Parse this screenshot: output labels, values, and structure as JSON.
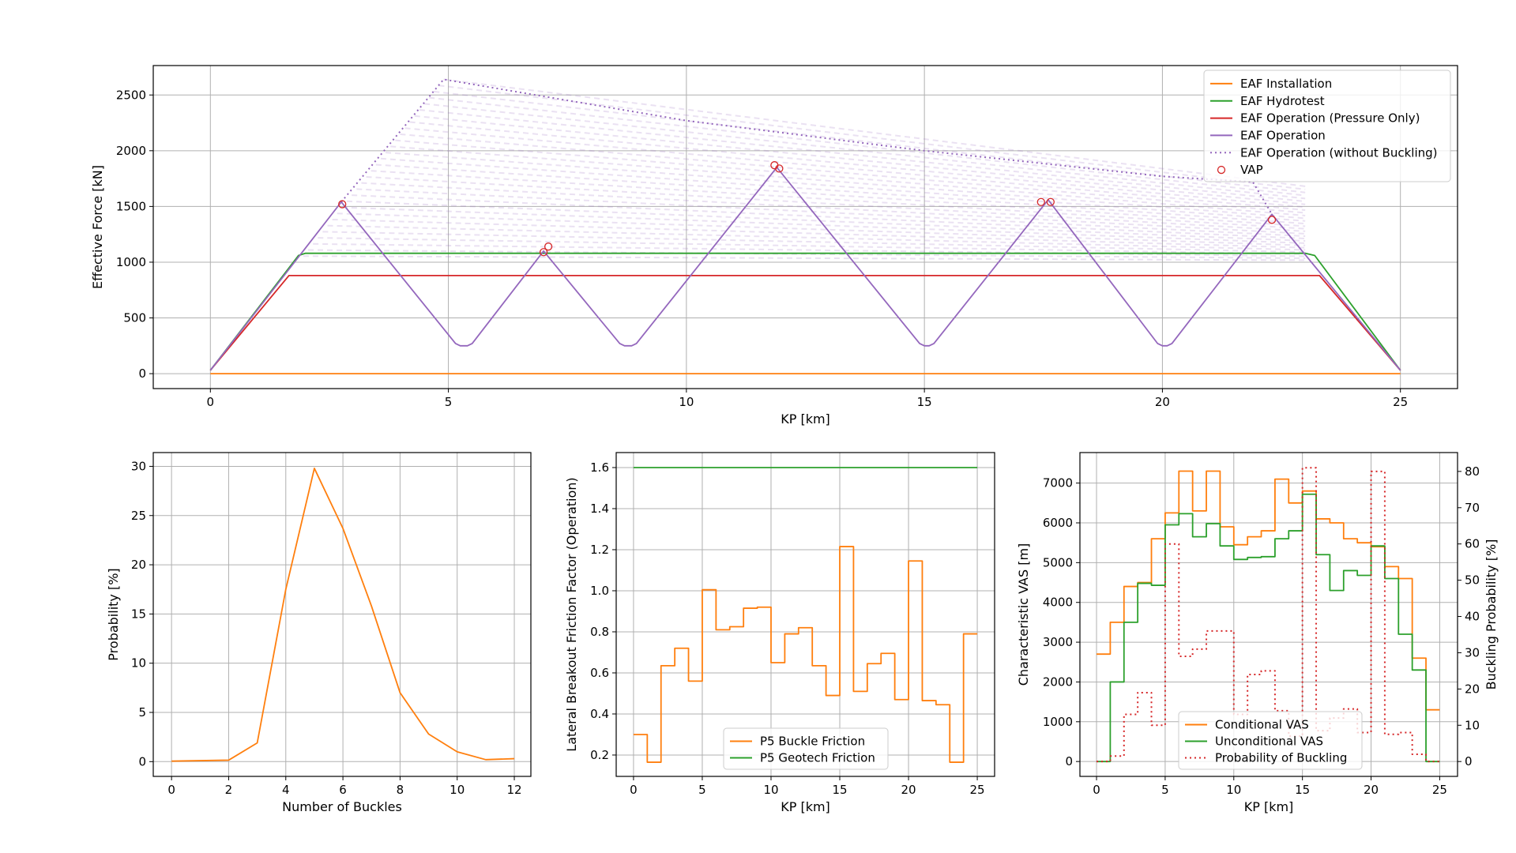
{
  "chart_data": [
    {
      "type": "line",
      "xlabel": "KP [km]",
      "ylabel": "Effective Force [kN]",
      "xlim": [
        -1.2,
        26.2
      ],
      "ylim": [
        -134,
        2764
      ],
      "xticks": [
        "0",
        "5",
        "10",
        "15",
        "20",
        "25"
      ],
      "yticks": [
        "0",
        "500",
        "1000",
        "1500",
        "2000",
        "2500"
      ],
      "grid": true,
      "legend_position": "top-right",
      "series": [
        {
          "name": "EAF Installation",
          "color": "#ff7f0e",
          "style": "solid",
          "points": [
            [
              0,
              0
            ],
            [
              25,
              0
            ]
          ]
        },
        {
          "name": "EAF Hydrotest",
          "color": "#2ca02c",
          "style": "solid",
          "points": [
            [
              0,
              30
            ],
            [
              1.85,
              1060
            ],
            [
              2.0,
              1080
            ],
            [
              23.0,
              1080
            ],
            [
              23.2,
              1060
            ],
            [
              25,
              30
            ]
          ]
        },
        {
          "name": "EAF Operation (Pressure Only)",
          "color": "#d62728",
          "style": "solid",
          "points": [
            [
              0,
              30
            ],
            [
              1.65,
              880
            ],
            [
              23.3,
              880
            ],
            [
              25,
              30
            ]
          ]
        },
        {
          "name": "EAF Operation",
          "color": "#9467bd",
          "style": "solid",
          "points": [
            [
              0,
              30
            ],
            [
              2.75,
              1540
            ],
            [
              5.15,
              270
            ],
            [
              5.25,
              250
            ],
            [
              5.4,
              250
            ],
            [
              5.5,
              270
            ],
            [
              7.0,
              1100
            ],
            [
              8.6,
              270
            ],
            [
              8.7,
              250
            ],
            [
              8.85,
              250
            ],
            [
              8.95,
              270
            ],
            [
              11.9,
              1850
            ],
            [
              14.9,
              270
            ],
            [
              15.0,
              250
            ],
            [
              15.1,
              250
            ],
            [
              15.2,
              270
            ],
            [
              17.6,
              1560
            ],
            [
              19.9,
              270
            ],
            [
              20.0,
              250
            ],
            [
              20.1,
              250
            ],
            [
              20.2,
              270
            ],
            [
              22.3,
              1430
            ],
            [
              25,
              30
            ]
          ]
        },
        {
          "name": "EAF Operation (without Buckling)",
          "color": "#9467bd",
          "style": "dotted",
          "points": [
            [
              2.75,
              1540
            ],
            [
              4.9,
              2640
            ],
            [
              10,
              2270
            ],
            [
              15,
              2000
            ],
            [
              20,
              1770
            ],
            [
              21.9,
              1720
            ],
            [
              22.3,
              1430
            ]
          ]
        },
        {
          "name": "VAP",
          "color": "#d62728",
          "style": "marker",
          "points": [
            [
              2.77,
              1520
            ],
            [
              7.0,
              1090
            ],
            [
              7.1,
              1140
            ],
            [
              11.85,
              1870
            ],
            [
              11.95,
              1840
            ],
            [
              17.45,
              1540
            ],
            [
              17.65,
              1540
            ],
            [
              22.3,
              1380
            ]
          ]
        }
      ]
    },
    {
      "type": "line",
      "xlabel": "Number of Buckles",
      "ylabel": "Probability [%]",
      "xlim": [
        -0.64,
        12.58
      ],
      "ylim": [
        -1.5,
        31.4
      ],
      "xticks": [
        "0",
        "2",
        "4",
        "6",
        "8",
        "10",
        "12"
      ],
      "yticks": [
        "0",
        "5",
        "10",
        "15",
        "20",
        "25",
        "30"
      ],
      "grid": true,
      "series": [
        {
          "color": "#ff7f0e",
          "x": [
            0,
            1,
            2,
            3,
            4,
            5,
            6,
            7,
            8,
            9,
            10,
            11,
            12
          ],
          "values": [
            0.05,
            0.1,
            0.15,
            1.9,
            17.5,
            29.8,
            23.7,
            15.8,
            7.0,
            2.8,
            1.0,
            0.2,
            0.3
          ]
        }
      ]
    },
    {
      "type": "line",
      "xlabel": "KP [km]",
      "ylabel": "Lateral Breakout Friction Factor (Operation)",
      "xlim": [
        -1.26,
        26.26
      ],
      "ylim": [
        0.096,
        1.673
      ],
      "xticks": [
        "0",
        "5",
        "10",
        "15",
        "20",
        "25"
      ],
      "yticks": [
        "0.2",
        "0.4",
        "0.6",
        "0.8",
        "1.0",
        "1.2",
        "1.4",
        "1.6"
      ],
      "grid": true,
      "legend_position": "lower-center",
      "series": [
        {
          "name": "P5 Buckle Friction",
          "color": "#ff7f0e",
          "drawstyle": "steps-post",
          "x": [
            0,
            1,
            2,
            3,
            4,
            5,
            6,
            7,
            8,
            9,
            10,
            11,
            12,
            13,
            14,
            15,
            16,
            17,
            18,
            19,
            20,
            21,
            22,
            23,
            24,
            25
          ],
          "values": [
            0.3,
            0.165,
            0.635,
            0.72,
            0.56,
            1.005,
            0.81,
            0.825,
            0.915,
            0.92,
            0.65,
            0.79,
            0.82,
            0.635,
            0.49,
            1.215,
            0.51,
            0.645,
            0.695,
            0.47,
            1.145,
            0.465,
            0.445,
            0.165,
            0.79,
            0.79
          ]
        },
        {
          "name": "P5 Geotech Friction",
          "color": "#2ca02c",
          "x": [
            0,
            25
          ],
          "values": [
            1.6,
            1.6
          ]
        }
      ]
    },
    {
      "type": "line",
      "xlabel": "KP [km]",
      "ylabel": "Characteristic VAS [m]",
      "ylabel_right": "Buckling Probability [%]",
      "xlim": [
        -1.21,
        26.3
      ],
      "ylim": [
        -374,
        7767
      ],
      "ylim_right": [
        -4.1,
        85.2
      ],
      "xticks": [
        "0",
        "5",
        "10",
        "15",
        "20",
        "25"
      ],
      "yticks": [
        "0",
        "1000",
        "2000",
        "3000",
        "4000",
        "5000",
        "6000",
        "7000"
      ],
      "yticks_right": [
        "0",
        "10",
        "20",
        "30",
        "40",
        "50",
        "60",
        "70",
        "80"
      ],
      "grid": true,
      "legend_position": "lower-center",
      "series": [
        {
          "name": "Conditional VAS",
          "color": "#ff7f0e",
          "drawstyle": "steps-post",
          "axis": "left",
          "x": [
            0,
            1,
            2,
            3,
            4,
            5,
            6,
            7,
            8,
            9,
            10,
            11,
            12,
            13,
            14,
            15,
            16,
            17,
            18,
            19,
            20,
            21,
            22,
            23,
            24,
            25
          ],
          "values": [
            2700,
            3500,
            4400,
            4500,
            5600,
            6250,
            7300,
            6300,
            7300,
            5900,
            5450,
            5650,
            5800,
            7100,
            6500,
            6800,
            6100,
            6000,
            5600,
            5500,
            5400,
            4900,
            4600,
            2600,
            1300,
            1300
          ]
        },
        {
          "name": "Unconditional VAS",
          "color": "#2ca02c",
          "drawstyle": "steps-post",
          "axis": "left",
          "x": [
            0,
            1,
            2,
            3,
            4,
            5,
            6,
            7,
            8,
            9,
            10,
            11,
            12,
            13,
            14,
            15,
            16,
            17,
            18,
            19,
            20,
            21,
            22,
            23,
            24,
            25
          ],
          "values": [
            0,
            2000,
            3500,
            4480,
            4430,
            5950,
            6230,
            5650,
            5980,
            5420,
            5080,
            5130,
            5150,
            5600,
            5800,
            6720,
            5200,
            4300,
            4800,
            4680,
            5420,
            4600,
            3200,
            2300,
            0,
            0
          ]
        },
        {
          "name": "Probability of Buckling",
          "color": "#d62728",
          "drawstyle": "steps-post",
          "style": "dotted",
          "axis": "right",
          "x": [
            0,
            1,
            2,
            3,
            4,
            5,
            6,
            7,
            8,
            9,
            10,
            11,
            12,
            13,
            14,
            15,
            16,
            17,
            18,
            19,
            20,
            21,
            22,
            23,
            24,
            25
          ],
          "values": [
            0,
            1.5,
            13,
            19,
            10,
            60,
            29,
            31,
            36,
            36,
            13,
            24,
            25,
            14,
            7,
            81,
            8.5,
            12,
            14.5,
            8,
            80,
            7.5,
            8,
            2,
            0,
            0
          ]
        }
      ]
    }
  ]
}
